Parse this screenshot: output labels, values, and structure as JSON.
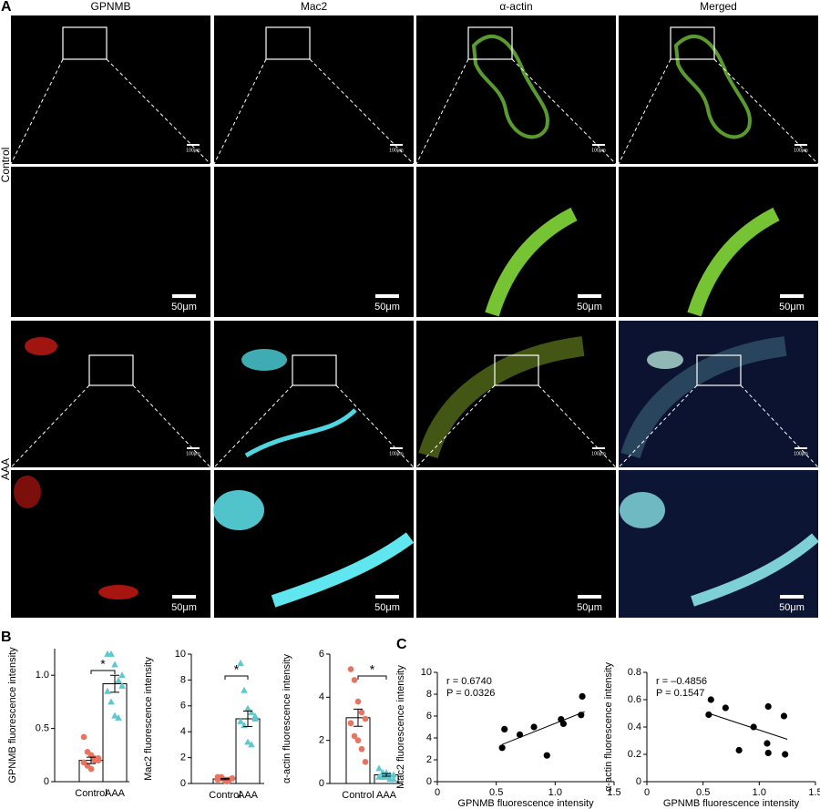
{
  "panel_labels": [
    "A",
    "B",
    "C"
  ],
  "image_panel": {
    "columns": [
      {
        "name": "GPNMB",
        "color": "#e8251f"
      },
      {
        "name": "Mac2",
        "color": "#4fd6e0"
      },
      {
        "name": "α-actin",
        "color": "#7ed321"
      },
      {
        "name": "Merged",
        "color": "#000000"
      }
    ],
    "rows": [
      "Control",
      "AAA"
    ],
    "scale_labels": [
      "100μm",
      "50μm"
    ]
  },
  "chart_data": [
    {
      "type": "bar",
      "ylabel": "GPNMB fluorescence intensity",
      "categories": [
        "Control",
        "AAA"
      ],
      "values": [
        0.2,
        0.92
      ],
      "errors": [
        0.03,
        0.08
      ],
      "colors": [
        "#e8735f",
        "#5ec8d0"
      ],
      "points": [
        [
          0.42,
          0.28,
          0.25,
          0.22,
          0.2,
          0.18,
          0.15,
          0.12,
          0.2,
          0.22
        ],
        [
          1.2,
          1.2,
          1.1,
          0.95,
          0.9,
          0.85,
          0.75,
          0.62,
          0.6,
          1.0
        ]
      ],
      "significance": "*",
      "ylim": [
        0,
        1.25
      ],
      "yticks": [
        0,
        0.5,
        {
          "value": 1,
          "label": "1.0"
        }
      ]
    },
    {
      "type": "bar",
      "ylabel": "Mac2 fluorescence intensity",
      "categories": [
        "Control",
        "AAA"
      ],
      "values": [
        0.35,
        5.0
      ],
      "errors": [
        0.05,
        0.6
      ],
      "colors": [
        "#e8735f",
        "#5ec8d0"
      ],
      "points": [
        [
          0.5,
          0.4,
          0.3,
          0.2,
          0.4,
          0.3,
          0.5,
          0.2,
          0.3,
          0.4
        ],
        [
          9.3,
          7.2,
          5.8,
          5.5,
          5.2,
          4.8,
          4.5,
          3.2,
          3.0,
          5.0
        ]
      ],
      "significance": "*",
      "ylim": [
        0,
        10
      ],
      "yticks": [
        0,
        2,
        4,
        6,
        8,
        10
      ]
    },
    {
      "type": "bar",
      "ylabel": "α-actin fluorescence intensity",
      "categories": [
        "Control",
        "AAA"
      ],
      "values": [
        3.05,
        0.4
      ],
      "errors": [
        0.4,
        0.06
      ],
      "colors": [
        "#e8735f",
        "#5ec8d0"
      ],
      "points": [
        [
          5.3,
          4.8,
          3.8,
          3.3,
          3.0,
          2.8,
          2.2,
          2.0,
          1.6,
          1.0
        ],
        [
          0.7,
          0.5,
          0.5,
          0.4,
          0.4,
          0.3,
          0.3,
          0.3,
          0.2,
          0.2
        ]
      ],
      "significance": "*",
      "ylim": [
        0,
        6
      ],
      "yticks": [
        0,
        2,
        4,
        6
      ]
    },
    {
      "type": "scatter",
      "xlabel": "GPNMB fluorescence intensity",
      "ylabel": "Mac2 fluorescence intensity",
      "annotations": [
        "r = 0.6740",
        "P = 0.0326"
      ],
      "color": "#000000",
      "x": [
        0.55,
        0.57,
        0.7,
        0.82,
        0.93,
        1.05,
        1.07,
        1.22,
        1.23
      ],
      "values": [
        3.1,
        4.8,
        4.3,
        5.0,
        2.4,
        5.7,
        5.3,
        6.1,
        7.8
      ],
      "fit": {
        "x": [
          0.55,
          1.25
        ],
        "y": [
          3.4,
          6.4
        ]
      },
      "xlim": [
        0,
        1.5
      ],
      "xticks": [
        0,
        0.5,
        {
          "value": 1,
          "label": "1.0"
        },
        1.5
      ],
      "ylim": [
        0,
        10
      ],
      "yticks": [
        0,
        2,
        4,
        6,
        8,
        10
      ]
    },
    {
      "type": "scatter",
      "xlabel": "GPNMB fluorescence intensity",
      "ylabel": "α-actin fluorescence intensity",
      "annotations": [
        "r = –0.4856",
        "P = 0.1547"
      ],
      "color": "#000000",
      "x": [
        0.55,
        0.57,
        0.7,
        0.82,
        0.95,
        1.07,
        1.08,
        1.08,
        1.22,
        1.23
      ],
      "values": [
        0.49,
        0.6,
        0.54,
        0.23,
        0.4,
        0.28,
        0.55,
        0.21,
        0.48,
        0.2
      ],
      "fit": {
        "x": [
          0.55,
          1.25
        ],
        "y": [
          0.5,
          0.31
        ]
      },
      "xlim": [
        0,
        1.5
      ],
      "xticks": [
        0,
        0.5,
        {
          "value": 1,
          "label": "1.0"
        },
        1.5
      ],
      "ylim": [
        0,
        0.8
      ],
      "yticks": [
        0,
        0.2,
        0.4,
        0.6,
        0.8
      ]
    }
  ]
}
